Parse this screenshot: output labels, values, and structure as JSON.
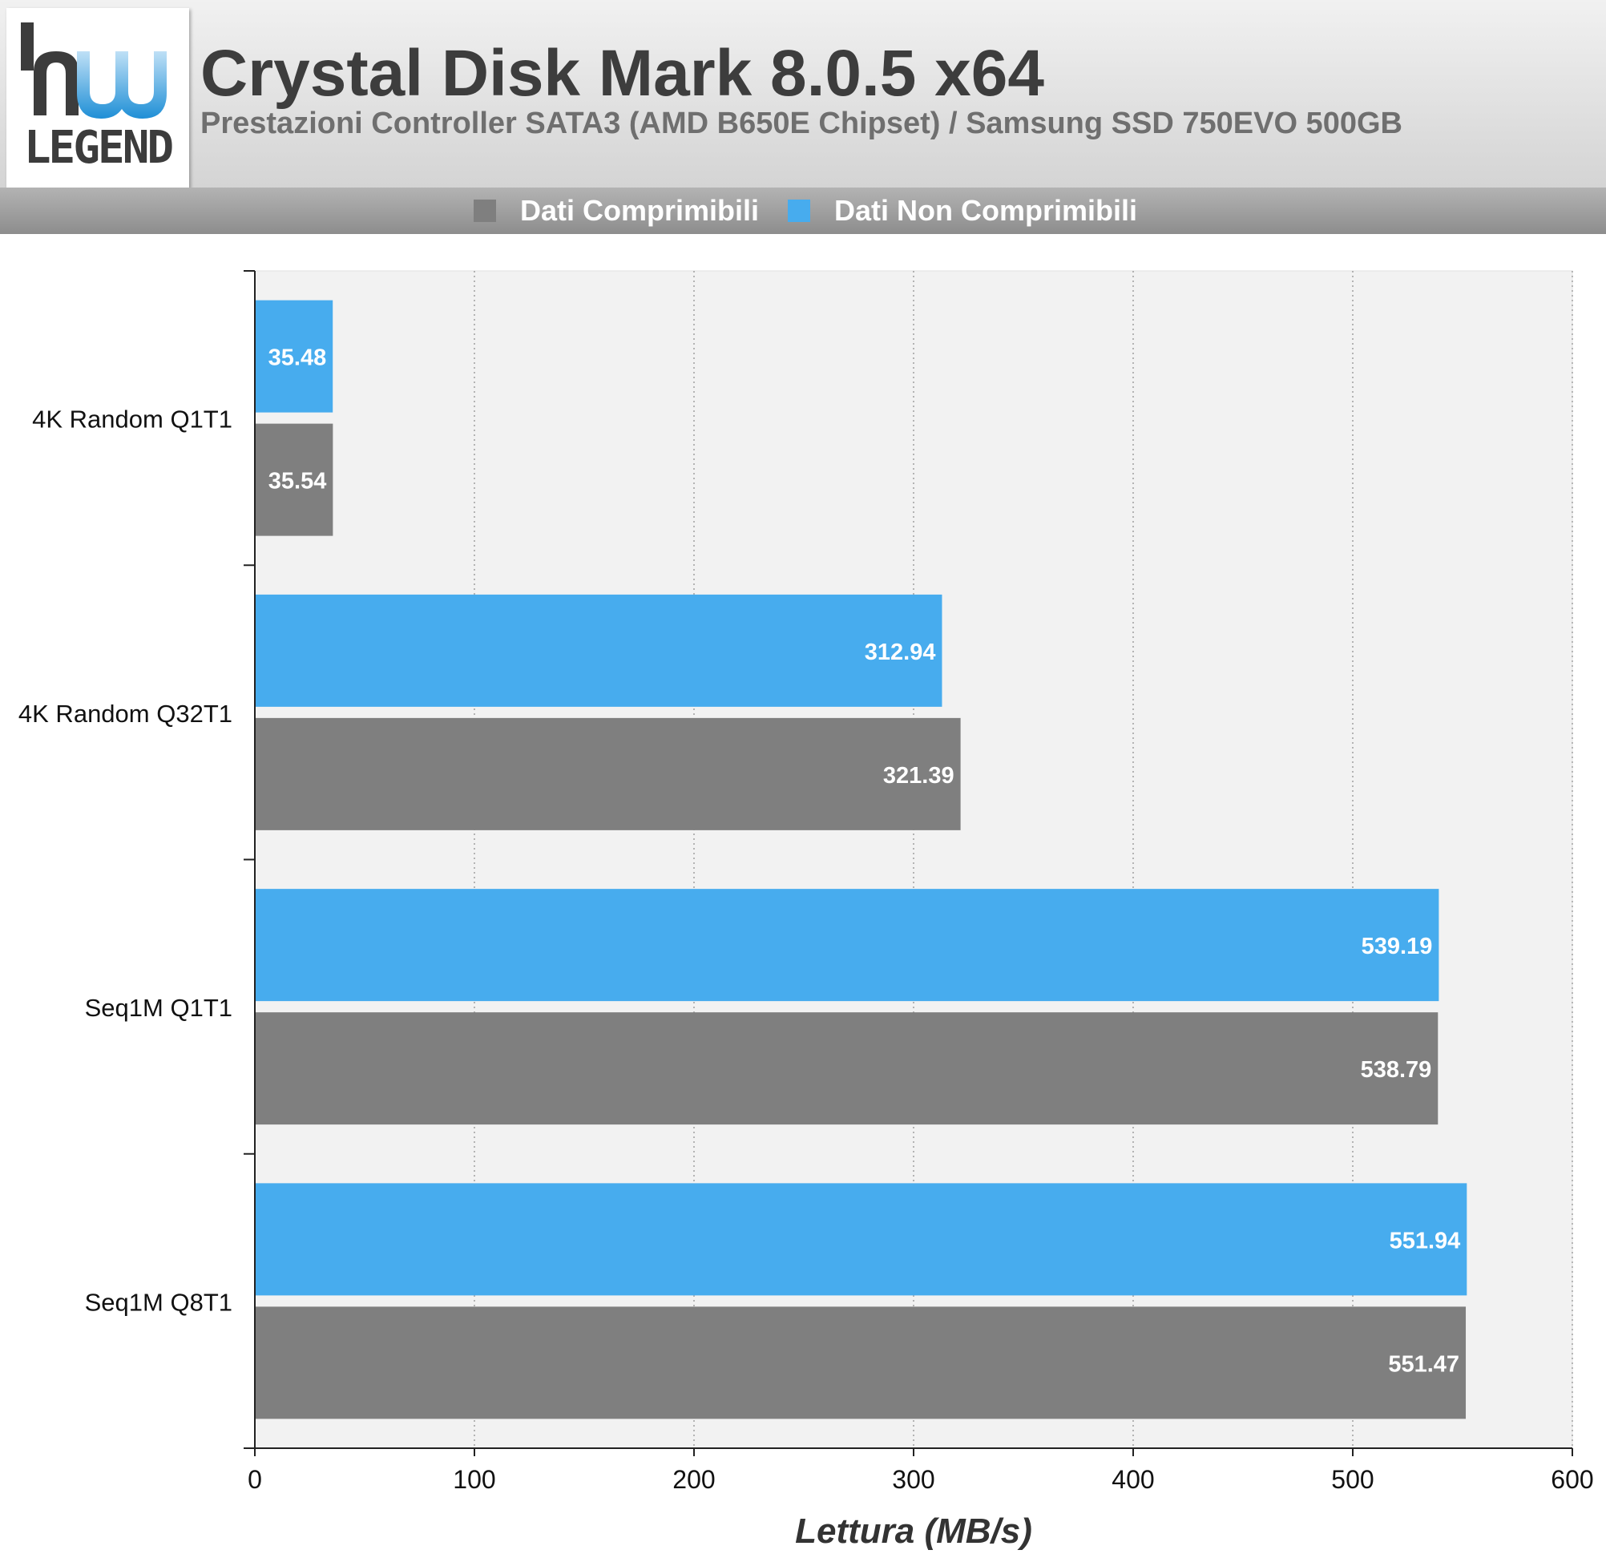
{
  "header": {
    "logo_text": "LEGEND",
    "title": "Crystal Disk Mark 8.0.5 x64",
    "subtitle": "Prestazioni Controller SATA3 (AMD B650E Chipset) / Samsung SSD 750EVO 500GB"
  },
  "legend": {
    "items": [
      {
        "label": "Dati Comprimibili",
        "color": "#7f7f7f"
      },
      {
        "label": "Dati Non Comprimibili",
        "color": "#47acee"
      }
    ]
  },
  "chart_data": {
    "type": "bar",
    "orientation": "horizontal",
    "categories": [
      "4K Random Q1T1",
      "4K Random Q32T1",
      "Seq1M Q1T1",
      "Seq1M Q8T1"
    ],
    "series": [
      {
        "name": "Dati Non Comprimibili",
        "color": "#47acee",
        "values": [
          35.48,
          312.94,
          539.19,
          551.94
        ]
      },
      {
        "name": "Dati Comprimibili",
        "color": "#7f7f7f",
        "values": [
          35.54,
          321.39,
          538.79,
          551.47
        ]
      }
    ],
    "xlabel": "Lettura (MB/s)",
    "ylabel": "",
    "xlim": [
      0,
      600
    ],
    "xticks": [
      0,
      100,
      200,
      300,
      400,
      500,
      600
    ],
    "grid": "vertical dotted",
    "legend": "top-center"
  }
}
